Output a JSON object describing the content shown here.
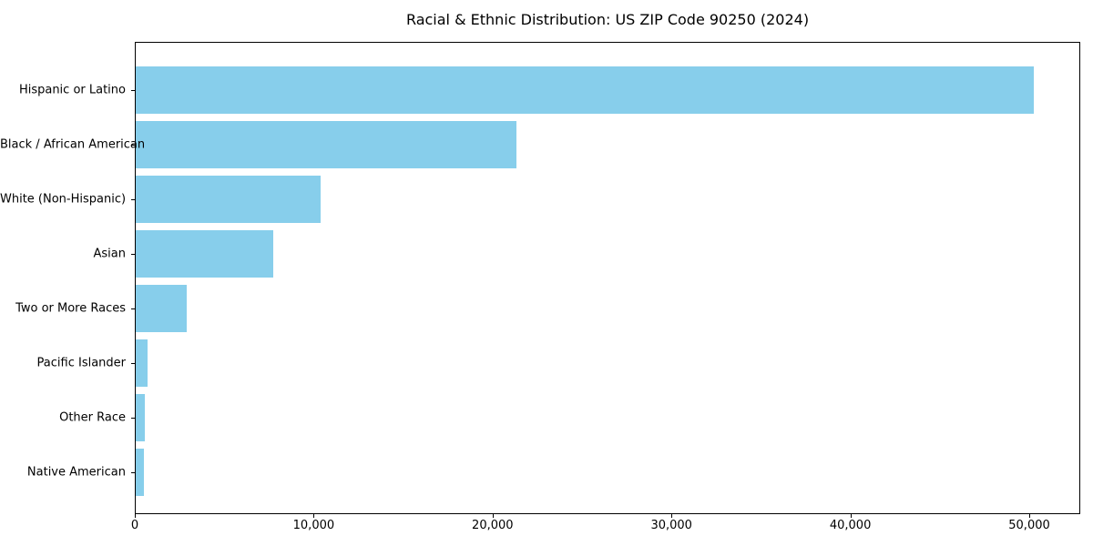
{
  "chart_data": {
    "type": "bar",
    "orientation": "horizontal",
    "title": "Racial & Ethnic Distribution: US ZIP Code 90250 (2024)",
    "categories": [
      "Hispanic or Latino",
      "Black / African American",
      "White (Non-Hispanic)",
      "Asian",
      "Two or More Races",
      "Pacific Islander",
      "Other Race",
      "Native American"
    ],
    "values": [
      50300,
      21300,
      10360,
      7700,
      2840,
      650,
      500,
      440
    ],
    "xlabel": "",
    "ylabel": "",
    "xlim": [
      0,
      52850
    ],
    "xticks": [
      0,
      10000,
      20000,
      30000,
      40000,
      50000
    ],
    "xtick_labels": [
      "0",
      "10,000",
      "20,000",
      "30,000",
      "40,000",
      "50,000"
    ],
    "bar_color": "#87CEEB",
    "frame_color": "#000000",
    "background_color": "#FFFFFF",
    "grid": false,
    "legend": null
  }
}
